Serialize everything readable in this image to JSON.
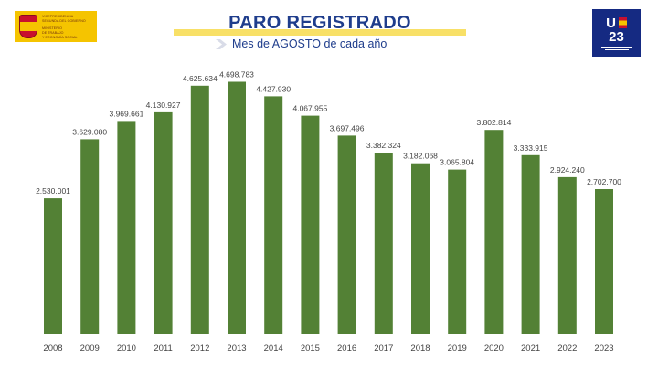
{
  "header": {
    "title": "PARO REGISTRADO",
    "subtitle": "Mes de AGOSTO de cada año",
    "gov_logo_lines": [
      "VICEPRESIDENCIA",
      "SEGUNDA DEL GOBIERNO",
      "MINISTERIO",
      "DE TRABAJO",
      "Y ECONOMÍA SOCIAL"
    ],
    "eu_logo_text": [
      "U",
      "23"
    ]
  },
  "colors": {
    "bar": "#538135",
    "title": "#1f3d8c",
    "title_band": "#f8e067",
    "gov_logo": "#f5c400",
    "eu_logo": "#152a82"
  },
  "chart_data": {
    "type": "bar",
    "title": "PARO REGISTRADO",
    "subtitle": "Mes de AGOSTO de cada año",
    "xlabel": "",
    "ylabel": "",
    "grid": false,
    "legend": "none",
    "ylim": [
      0,
      5200000
    ],
    "categories": [
      "2008",
      "2009",
      "2010",
      "2011",
      "2012",
      "2013",
      "2014",
      "2015",
      "2016",
      "2017",
      "2018",
      "2019",
      "2020",
      "2021",
      "2022",
      "2023"
    ],
    "values": [
      2530001,
      3629080,
      3969661,
      4130927,
      4625634,
      4698783,
      4427930,
      4067955,
      3697496,
      3382324,
      3182068,
      3065804,
      3802814,
      3333915,
      2924240,
      2702700
    ],
    "labels": [
      "2.530.001",
      "3.629.080",
      "3.969.661",
      "4.130.927",
      "4.625.634",
      "4.698.783",
      "4.427.930",
      "4.067.955",
      "3.697.496",
      "3.382.324",
      "3.182.068",
      "3.065.804",
      "3.802.814",
      "3.333.915",
      "2.924.240",
      "2.702.700"
    ]
  }
}
